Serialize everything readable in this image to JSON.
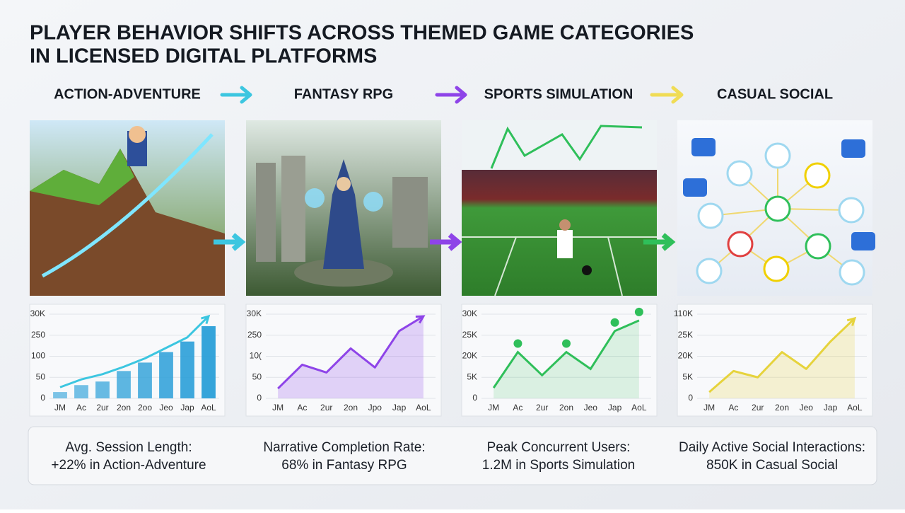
{
  "header": {
    "title_lines": [
      "PLAYER BEHAVIOR SHIFTS ACROSS THEMED GAME CATEGORIES",
      "IN LICENSED DIGITAL PLATFORMS"
    ]
  },
  "panels": [
    "ACTION-ADVENTURE",
    "FANTASY RPG",
    "SPORTS SIMULATION",
    "CASUAL SOCIAL"
  ],
  "chart_data": [
    {
      "type": "bar",
      "color": "#2a9fd8",
      "categories": [
        "JM",
        "Ac",
        "2ur",
        "2on",
        "2oo",
        "Jeo",
        "Jap",
        "AoL"
      ],
      "values": [
        0.3,
        0.63,
        0.8,
        1.3,
        1.7,
        2.2,
        2.7,
        3.43
      ],
      "trend": [
        0.53,
        0.9,
        1.15,
        1.5,
        1.9,
        2.4,
        2.9,
        3.9
      ],
      "ylim": [
        0,
        4
      ],
      "ylabels": [
        "0",
        "50",
        "100",
        "250",
        "30K"
      ],
      "grid": true
    },
    {
      "type": "area",
      "color": "#8e44e8",
      "categories": [
        "JM",
        "Ac",
        "2ur",
        "2on",
        "Jpo",
        "Jap",
        "AoL"
      ],
      "values": [
        0.47,
        1.6,
        1.23,
        2.37,
        1.47,
        3.2,
        3.9
      ],
      "ylim": [
        0,
        4
      ],
      "ylabels": [
        "0",
        "50",
        "10(",
        "250",
        "30K"
      ],
      "grid": true
    },
    {
      "type": "line",
      "color": "#2fbf5a",
      "categories": [
        "JM",
        "Ac",
        "2ur",
        "2on",
        "Jeo",
        "Jap",
        "AoL"
      ],
      "values": [
        0.5,
        2.2,
        1.1,
        2.2,
        1.4,
        3.2,
        3.7
      ],
      "ylim": [
        0,
        4
      ],
      "ylabels": [
        "0",
        "5K",
        "20K",
        "25K",
        "30K"
      ],
      "grid": true
    },
    {
      "type": "area",
      "color": "#e6d33c",
      "categories": [
        "JM",
        "Ac",
        "2ur",
        "2on",
        "Jeo",
        "Jap",
        "AoL"
      ],
      "values": [
        0.3,
        1.3,
        1.0,
        2.2,
        1.4,
        2.7,
        3.8
      ],
      "ylim": [
        0,
        4
      ],
      "ylabels": [
        "0",
        "5K",
        "20K",
        "25K",
        "110K"
      ],
      "grid": true
    }
  ],
  "stats": [
    {
      "label": "Avg. Session Length:",
      "detail": "+22% in Action-Adventure"
    },
    {
      "label": "Narrative Completion Rate:",
      "detail": "68% in Fantasy RPG"
    },
    {
      "label": "Peak Concurrent Users:",
      "detail": "1.2M in Sports Simulation"
    },
    {
      "label": "Daily Active Social Interactions:",
      "detail": "850K in Casual Social"
    }
  ]
}
